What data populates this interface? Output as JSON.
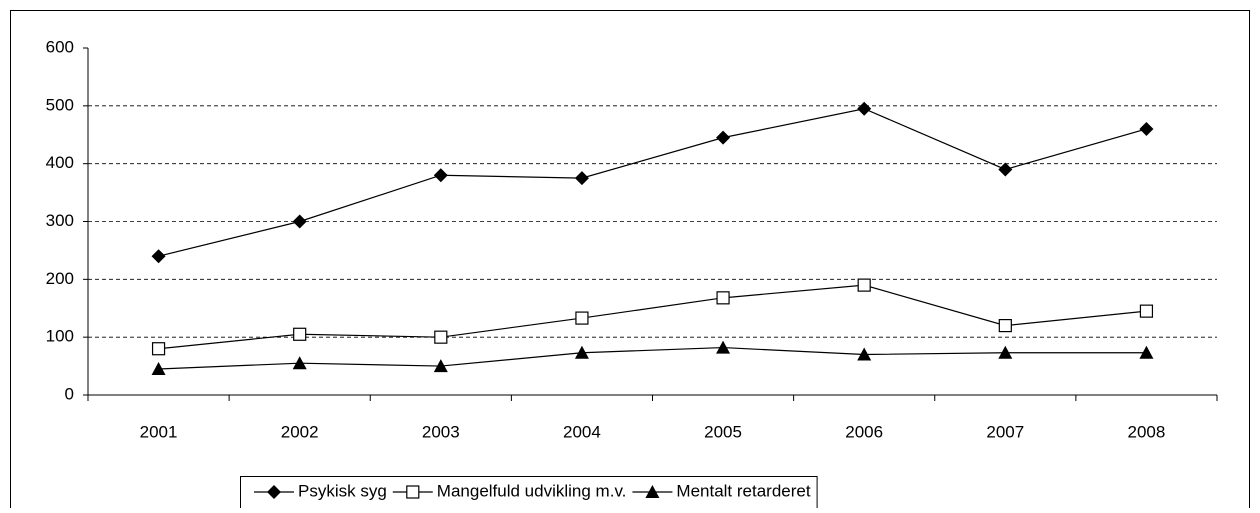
{
  "chart_data": {
    "type": "line",
    "categories": [
      "2001",
      "2002",
      "2003",
      "2004",
      "2005",
      "2006",
      "2007",
      "2008"
    ],
    "series": [
      {
        "name": "Psykisk syg",
        "color": "#000000",
        "marker": "diamond",
        "values": [
          240,
          300,
          380,
          375,
          445,
          495,
          390,
          460
        ]
      },
      {
        "name": "Mangelfuld udvikling m.v.",
        "color": "#000000",
        "marker": "square",
        "values": [
          80,
          105,
          100,
          133,
          168,
          190,
          120,
          145
        ]
      },
      {
        "name": "Mentalt retarderet",
        "color": "#000000",
        "marker": "triangle",
        "values": [
          45,
          55,
          50,
          73,
          82,
          70,
          73,
          73
        ]
      }
    ],
    "ylim": [
      0,
      600
    ],
    "yticks": [
      0,
      100,
      200,
      300,
      400,
      500,
      600
    ],
    "grid": true,
    "legend": "bottom"
  }
}
